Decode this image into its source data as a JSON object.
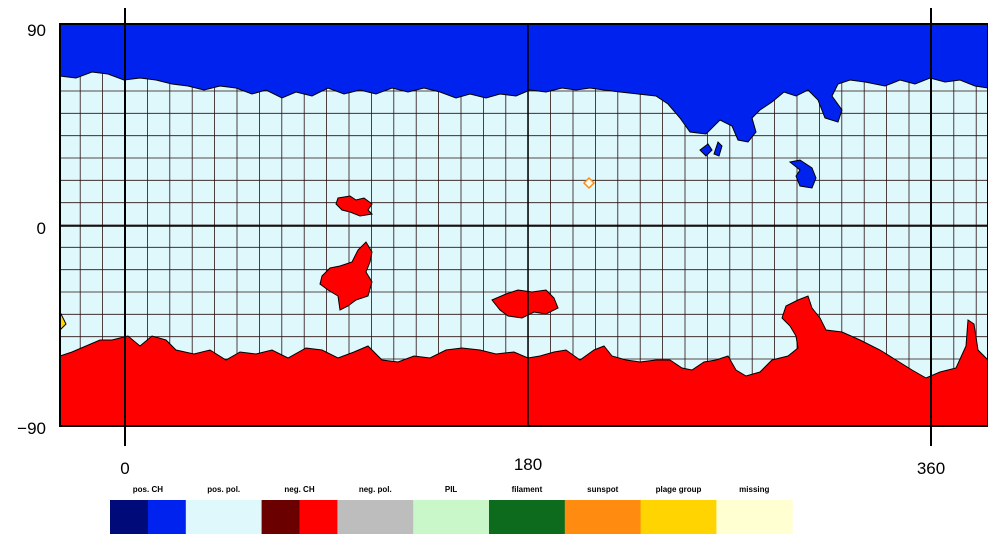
{
  "map": {
    "title": "",
    "x_axis": {
      "range": [
        -30,
        380
      ],
      "ticks": [
        {
          "value": 0,
          "label": "0"
        },
        {
          "value": 180,
          "label": "180"
        },
        {
          "value": 360,
          "label": "360"
        }
      ]
    },
    "y_axis": {
      "range": [
        -90,
        90
      ],
      "ticks": [
        {
          "value": 90,
          "label": "90"
        },
        {
          "value": 0,
          "label": "0"
        },
        {
          "value": -90,
          "label": "−90"
        }
      ]
    },
    "grid": true,
    "background_color": "#dff8fb",
    "regions": [
      {
        "type": "pos. CH",
        "color": "#0022ee",
        "hemisphere": "north polar cap"
      },
      {
        "type": "neg. CH",
        "color": "#ff0000",
        "hemisphere": "south polar cap"
      },
      {
        "type": "neg. CH",
        "color": "#ff0000",
        "location": "mid-latitude patches"
      },
      {
        "type": "sunspot",
        "color": "#ff8c10",
        "location": "small marker near longitude 208"
      },
      {
        "type": "plage group",
        "color": "#ffd400",
        "location": "left edge"
      }
    ]
  },
  "legend": {
    "items": [
      {
        "label": "pos. CH",
        "colors": [
          "#000a78",
          "#0022ee"
        ]
      },
      {
        "label": "pos. pol.",
        "colors": [
          "#dff8fb"
        ]
      },
      {
        "label": "neg. CH",
        "colors": [
          "#6b0000",
          "#ff0000"
        ]
      },
      {
        "label": "neg. pol.",
        "colors": [
          "#bdbdbd"
        ]
      },
      {
        "label": "PIL",
        "colors": [
          "#c9f7c9"
        ]
      },
      {
        "label": "filament",
        "colors": [
          "#0c6b1c"
        ]
      },
      {
        "label": "sunspot",
        "colors": [
          "#ff8c10"
        ]
      },
      {
        "label": "plage group",
        "colors": [
          "#ffd400"
        ]
      },
      {
        "label": "missing",
        "colors": [
          "#ffffd2"
        ]
      }
    ]
  }
}
